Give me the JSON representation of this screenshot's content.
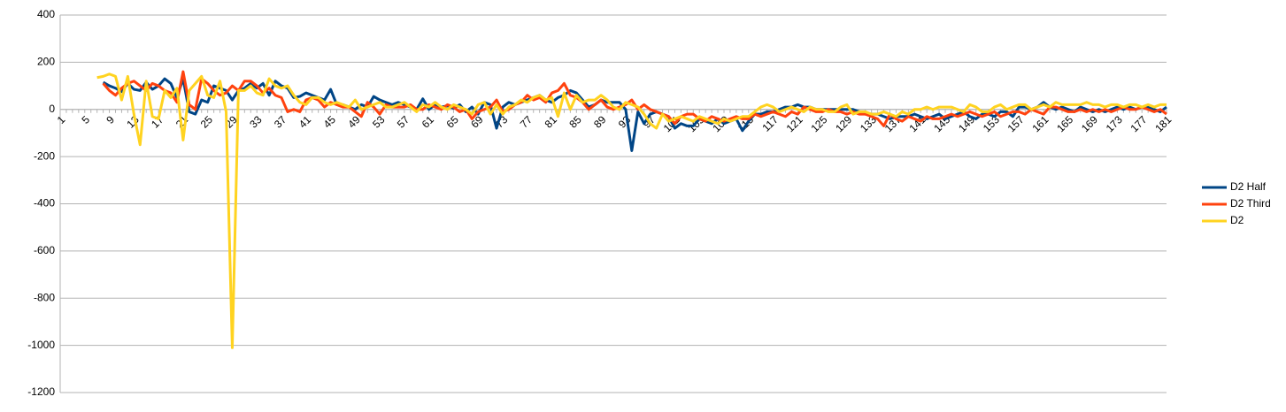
{
  "chart_data": {
    "type": "line",
    "categories": [
      1,
      null,
      null,
      null,
      5,
      null,
      null,
      null,
      9,
      null,
      null,
      null,
      13,
      null,
      null,
      null,
      17,
      null,
      null,
      null,
      21,
      null,
      null,
      null,
      25,
      null,
      null,
      null,
      29,
      null,
      null,
      null,
      33,
      null,
      null,
      null,
      37,
      null,
      null,
      null,
      41,
      null,
      null,
      null,
      45,
      null,
      null,
      null,
      49,
      null,
      null,
      null,
      53,
      null,
      null,
      null,
      57,
      null,
      null,
      null,
      61,
      null,
      null,
      null,
      65,
      null,
      null,
      null,
      69,
      null,
      null,
      null,
      73,
      null,
      null,
      null,
      77,
      null,
      null,
      null,
      81,
      null,
      null,
      null,
      85,
      null,
      null,
      null,
      89,
      null,
      null,
      null,
      93,
      null,
      null,
      null,
      97,
      null,
      null,
      null,
      101,
      null,
      null,
      null,
      105,
      null,
      null,
      null,
      109,
      null,
      null,
      null,
      113,
      null,
      null,
      null,
      117,
      null,
      null,
      null,
      121,
      null,
      null,
      null,
      125,
      null,
      null,
      null,
      129,
      null,
      null,
      null,
      133,
      null,
      null,
      null,
      137,
      null,
      null,
      null,
      141,
      null,
      null,
      null,
      145,
      null,
      null,
      null,
      149,
      null,
      null,
      null,
      153,
      null,
      null,
      null,
      157,
      null,
      null,
      null,
      161,
      null,
      null,
      null,
      165,
      null,
      null,
      null,
      169,
      null,
      null,
      null,
      173,
      null,
      null,
      null,
      177,
      null,
      null,
      null,
      181
    ],
    "series": [
      {
        "name": "D2 Half",
        "color": "#004586",
        "values": [
          null,
          null,
          null,
          null,
          null,
          null,
          null,
          115,
          100,
          90,
          75,
          110,
          85,
          80,
          115,
          85,
          100,
          130,
          110,
          50,
          130,
          -10,
          -20,
          40,
          30,
          100,
          90,
          80,
          40,
          80,
          90,
          110,
          90,
          110,
          60,
          120,
          100,
          90,
          50,
          55,
          70,
          60,
          50,
          40,
          85,
          20,
          20,
          10,
          0,
          20,
          10,
          55,
          40,
          30,
          20,
          30,
          20,
          10,
          0,
          45,
          0,
          20,
          10,
          15,
          5,
          20,
          -10,
          10,
          -20,
          30,
          20,
          -80,
          10,
          30,
          20,
          30,
          40,
          50,
          60,
          40,
          30,
          50,
          60,
          80,
          70,
          40,
          10,
          20,
          40,
          30,
          30,
          30,
          0,
          -175,
          -10,
          -60,
          -20,
          -10,
          -20,
          -30,
          -80,
          -60,
          -70,
          -70,
          -40,
          -50,
          -60,
          -40,
          -60,
          -50,
          -40,
          -90,
          -50,
          -20,
          -20,
          -10,
          -10,
          0,
          10,
          10,
          20,
          10,
          10,
          0,
          0,
          0,
          0,
          0,
          0,
          0,
          -10,
          -20,
          -20,
          -20,
          -30,
          -40,
          -30,
          -30,
          -30,
          -20,
          -30,
          -40,
          -30,
          -20,
          -40,
          -30,
          -20,
          -10,
          -30,
          -40,
          -20,
          -20,
          -30,
          -10,
          -10,
          -30,
          10,
          10,
          0,
          10,
          30,
          10,
          0,
          10,
          0,
          -10,
          10,
          0,
          -10,
          0,
          -10,
          0,
          10,
          0,
          10,
          0,
          10,
          10,
          0,
          -10,
          10
        ]
      },
      {
        "name": "D2 Third",
        "color": "#ff420e",
        "values": [
          null,
          null,
          null,
          null,
          null,
          null,
          null,
          110,
          80,
          60,
          90,
          110,
          120,
          100,
          80,
          110,
          100,
          80,
          70,
          30,
          160,
          20,
          0,
          130,
          110,
          80,
          60,
          70,
          100,
          80,
          120,
          120,
          100,
          70,
          90,
          60,
          50,
          -10,
          0,
          -10,
          40,
          50,
          40,
          10,
          30,
          20,
          10,
          10,
          -10,
          -30,
          30,
          10,
          -20,
          20,
          10,
          10,
          10,
          20,
          0,
          0,
          20,
          10,
          0,
          20,
          10,
          -10,
          0,
          -40,
          -10,
          0,
          10,
          40,
          -10,
          0,
          20,
          30,
          60,
          40,
          50,
          30,
          70,
          80,
          110,
          60,
          50,
          30,
          0,
          20,
          40,
          10,
          0,
          10,
          20,
          40,
          0,
          20,
          0,
          -10,
          -20,
          -30,
          -60,
          -30,
          -20,
          -20,
          -40,
          -50,
          -30,
          -40,
          -50,
          -40,
          -30,
          -40,
          -40,
          -20,
          -30,
          -20,
          -10,
          -20,
          -30,
          -10,
          -20,
          10,
          0,
          -10,
          -10,
          0,
          -10,
          -10,
          -20,
          -10,
          -20,
          -20,
          -30,
          -40,
          -70,
          -20,
          -40,
          -50,
          -30,
          -40,
          -50,
          -30,
          -40,
          -40,
          -30,
          -20,
          -30,
          -20,
          -10,
          -20,
          -30,
          -20,
          -10,
          -30,
          -20,
          -10,
          -10,
          -20,
          0,
          -10,
          -20,
          10,
          10,
          0,
          -10,
          -10,
          0,
          -10,
          0,
          -10,
          0,
          -10,
          0,
          10,
          0,
          0,
          10,
          0,
          -10,
          0,
          -20
        ]
      },
      {
        "name": "D2",
        "color": "#ffd320",
        "values": [
          null,
          null,
          null,
          null,
          null,
          null,
          135,
          140,
          150,
          140,
          40,
          140,
          -20,
          -150,
          120,
          -30,
          -40,
          80,
          50,
          90,
          -130,
          80,
          110,
          140,
          60,
          50,
          120,
          -10,
          -1010,
          80,
          80,
          100,
          70,
          60,
          130,
          100,
          90,
          100,
          60,
          30,
          20,
          50,
          50,
          30,
          20,
          30,
          20,
          10,
          40,
          0,
          10,
          20,
          30,
          10,
          10,
          20,
          30,
          10,
          -10,
          20,
          10,
          30,
          10,
          0,
          20,
          10,
          0,
          -20,
          20,
          30,
          -20,
          20,
          -20,
          10,
          20,
          40,
          30,
          50,
          60,
          40,
          50,
          -30,
          70,
          0,
          60,
          30,
          40,
          40,
          60,
          40,
          10,
          0,
          30,
          20,
          10,
          -20,
          -60,
          -80,
          -20,
          -50,
          -40,
          -30,
          -40,
          -50,
          -30,
          -40,
          -50,
          -60,
          -40,
          -50,
          -40,
          -30,
          -30,
          -10,
          10,
          20,
          10,
          -10,
          0,
          10,
          0,
          -10,
          10,
          0,
          0,
          -10,
          -10,
          10,
          20,
          -20,
          -10,
          -10,
          -20,
          -20,
          -10,
          -20,
          -30,
          -10,
          -20,
          0,
          0,
          10,
          0,
          10,
          10,
          10,
          0,
          -10,
          20,
          10,
          -10,
          -10,
          10,
          20,
          0,
          10,
          20,
          20,
          0,
          10,
          20,
          10,
          30,
          20,
          20,
          20,
          20,
          30,
          20,
          20,
          10,
          20,
          20,
          10,
          20,
          20,
          10,
          20,
          10,
          20,
          20
        ]
      }
    ],
    "ylim": [
      -1200,
      400
    ],
    "yticks": [
      400,
      200,
      0,
      -200,
      -400,
      -600,
      -800,
      -1000,
      -1200
    ],
    "grid": true,
    "legend": "right"
  }
}
